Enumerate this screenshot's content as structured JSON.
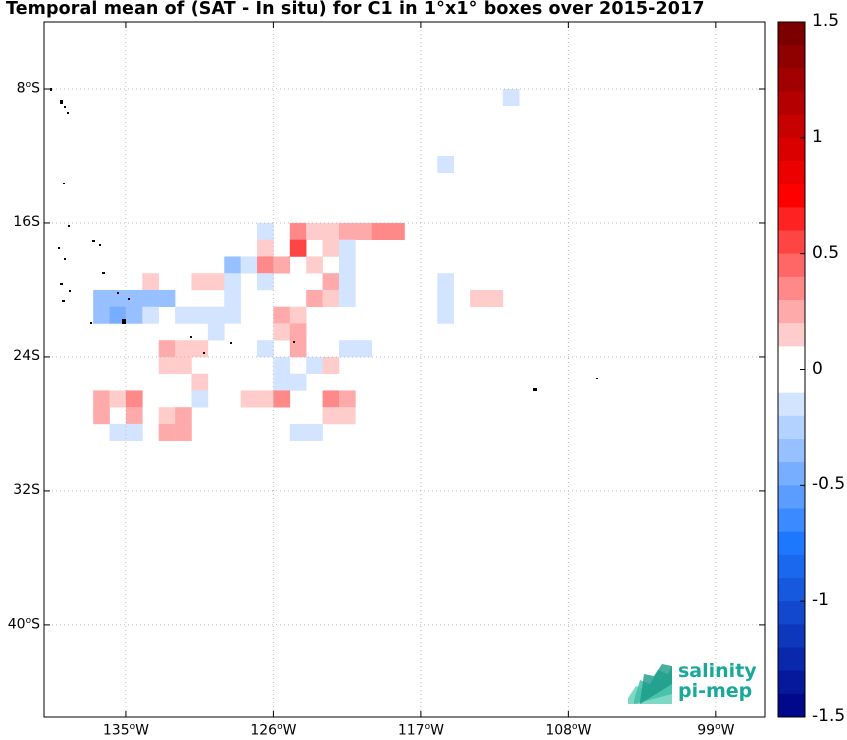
{
  "title": "Temporal mean of (SAT - In situ) for C1 in 1°x1° boxes over 2015-2017",
  "map": {
    "lon_range": [
      -140.0,
      -96.0
    ],
    "lat_range": [
      -45.5,
      -4.0
    ],
    "lon_ticks": [
      {
        "value": -135,
        "label": "135",
        "unit": "W"
      },
      {
        "value": -126,
        "label": "126",
        "unit": "W"
      },
      {
        "value": -117,
        "label": "117",
        "unit": "W"
      },
      {
        "value": -108,
        "label": "108",
        "unit": "W"
      },
      {
        "value": -99,
        "label": "99",
        "unit": "W"
      }
    ],
    "lat_ticks": [
      {
        "value": -8,
        "label": "8",
        "unit": "S"
      },
      {
        "value": -16,
        "label": "16",
        "unit": "S",
        "plain": true
      },
      {
        "value": -24,
        "label": "24",
        "unit": "S",
        "plain": true
      },
      {
        "value": -32,
        "label": "32",
        "unit": "S",
        "plain": true
      },
      {
        "value": -40,
        "label": "40",
        "unit": "S"
      }
    ],
    "grid": "dotted"
  },
  "colorbar": {
    "range": [
      -1.5,
      1.5
    ],
    "levels": 30,
    "ticks": [
      {
        "value": 1.5,
        "label": "1.5"
      },
      {
        "value": 1,
        "label": "1"
      },
      {
        "value": 0.5,
        "label": "0.5"
      },
      {
        "value": 0,
        "label": "0"
      },
      {
        "value": -0.5,
        "label": "-0.5"
      },
      {
        "value": -1,
        "label": "-1"
      },
      {
        "value": -1.5,
        "label": "-1.5"
      }
    ]
  },
  "chart_data": {
    "type": "heatmap",
    "title": "Temporal mean of (SAT - In situ) for C1 in 1°x1° boxes over 2015-2017",
    "cells_lonlat_value": [
      [
        -112,
        -9,
        -0.1
      ],
      [
        -116,
        -13,
        -0.1
      ],
      [
        -127,
        -17,
        -0.1
      ],
      [
        -125,
        -17,
        0.3
      ],
      [
        -124,
        -17,
        0.1
      ],
      [
        -123,
        -17,
        0.1
      ],
      [
        -122,
        -17,
        0.2
      ],
      [
        -121,
        -17,
        0.2
      ],
      [
        -120,
        -17,
        0.3
      ],
      [
        -119,
        -17,
        0.3
      ],
      [
        -127,
        -18,
        0.1
      ],
      [
        -125,
        -18,
        0.5
      ],
      [
        -123,
        -18,
        0.1
      ],
      [
        -122,
        -18,
        -0.2
      ],
      [
        -129,
        -19,
        -0.3
      ],
      [
        -128,
        -19,
        -0.1
      ],
      [
        -127,
        -19,
        0.3
      ],
      [
        -126,
        -19,
        0.2
      ],
      [
        -124,
        -19,
        0.1
      ],
      [
        -122,
        -19,
        -0.1
      ],
      [
        -134,
        -20,
        0.1
      ],
      [
        -131,
        -20,
        0.1
      ],
      [
        -130,
        -20,
        0.1
      ],
      [
        -129,
        -20,
        -0.1
      ],
      [
        -127,
        -20,
        -0.1
      ],
      [
        -123,
        -20,
        0.2
      ],
      [
        -122,
        -20,
        -0.1
      ],
      [
        -116,
        -20,
        -0.2
      ],
      [
        -137,
        -21,
        -0.3
      ],
      [
        -136,
        -21,
        -0.4
      ],
      [
        -135,
        -21,
        -0.3
      ],
      [
        -134,
        -21,
        -0.3
      ],
      [
        -133,
        -21,
        -0.3
      ],
      [
        -129,
        -21,
        -0.1
      ],
      [
        -124,
        -21,
        0.2
      ],
      [
        -123,
        -21,
        0.1
      ],
      [
        -122,
        -21,
        -0.1
      ],
      [
        -116,
        -21,
        -0.1
      ],
      [
        -114,
        -21,
        0.1
      ],
      [
        -113,
        -21,
        0.1
      ],
      [
        -137,
        -22,
        -0.4
      ],
      [
        -136,
        -22,
        -0.5
      ],
      [
        -135,
        -22,
        -0.3
      ],
      [
        -134,
        -22,
        -0.2
      ],
      [
        -132,
        -22,
        -0.2
      ],
      [
        -131,
        -22,
        -0.2
      ],
      [
        -130,
        -22,
        -0.1
      ],
      [
        -129,
        -22,
        -0.1
      ],
      [
        -126,
        -22,
        0.2
      ],
      [
        -125,
        -22,
        0.1
      ],
      [
        -116,
        -22,
        -0.1
      ],
      [
        -130,
        -23,
        -0.1
      ],
      [
        -126,
        -23,
        0.1
      ],
      [
        -125,
        -23,
        0.2
      ],
      [
        -133,
        -24,
        0.2
      ],
      [
        -132,
        -24,
        0.1
      ],
      [
        -131,
        -24,
        0.1
      ],
      [
        -127,
        -24,
        -0.1
      ],
      [
        -125,
        -24,
        0.2
      ],
      [
        -121,
        -24,
        -0.2
      ],
      [
        -122,
        -24,
        -0.2
      ],
      [
        -133,
        -25,
        0.1
      ],
      [
        -132,
        -25,
        0.1
      ],
      [
        -126,
        -25,
        -0.1
      ],
      [
        -124,
        -25,
        -0.1
      ],
      [
        -123,
        -25,
        0.1
      ],
      [
        -131,
        -26,
        0.1
      ],
      [
        -126,
        -26,
        -0.1
      ],
      [
        -125,
        -26,
        -0.1
      ],
      [
        -137,
        -27,
        0.2
      ],
      [
        -136,
        -27,
        0.1
      ],
      [
        -135,
        -27,
        0.3
      ],
      [
        -131,
        -27,
        -0.1
      ],
      [
        -128,
        -27,
        0.1
      ],
      [
        -127,
        -27,
        0.1
      ],
      [
        -126,
        -27,
        0.3
      ],
      [
        -123,
        -27,
        0.3
      ],
      [
        -122,
        -27,
        0.2
      ],
      [
        -137,
        -28,
        0.2
      ],
      [
        -135,
        -28,
        0.2
      ],
      [
        -133,
        -28,
        0.1
      ],
      [
        -132,
        -28,
        0.2
      ],
      [
        -123,
        -28,
        0.1
      ],
      [
        -122,
        -28,
        0.1
      ],
      [
        -136,
        -29,
        -0.1
      ],
      [
        -135,
        -29,
        -0.1
      ],
      [
        -133,
        -29,
        0.2
      ],
      [
        -132,
        -29,
        0.2
      ],
      [
        -125,
        -29,
        -0.1
      ],
      [
        -124,
        -29,
        -0.1
      ]
    ]
  },
  "logo": {
    "line1": "salinity",
    "line2": "pi-mep"
  },
  "colors": {
    "land": "#000000",
    "grid": "#bbbbbb"
  }
}
